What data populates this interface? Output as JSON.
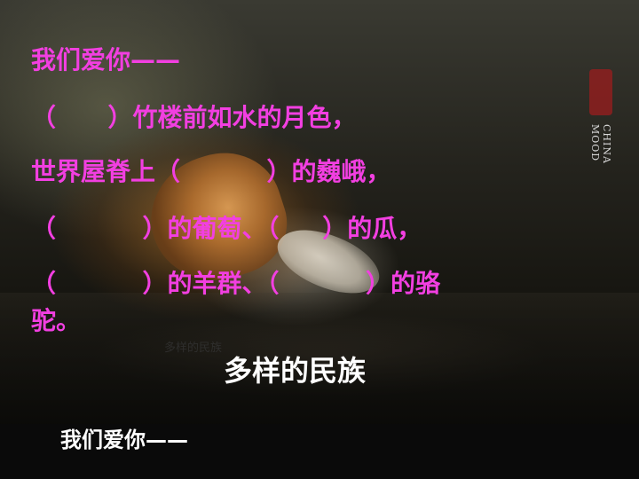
{
  "poem": {
    "line1": "我们爱你——",
    "line2": "（      ）竹楼前如水的月色，",
    "line3": "世界屋脊上（          ）的巍峨，",
    "line4": "（          ）的葡萄、（     ）的瓜，",
    "line5": "（          ）的羊群、（          ）的骆",
    "line6": "驼。"
  },
  "caption_small": "多样的民族",
  "caption": "多样的民族",
  "brand": "CHINA MOOD",
  "footer": "我们爱你——",
  "colors": {
    "poem_text": "#f23fe1",
    "caption": "#ffffff",
    "seal": "#8e1f1f"
  }
}
